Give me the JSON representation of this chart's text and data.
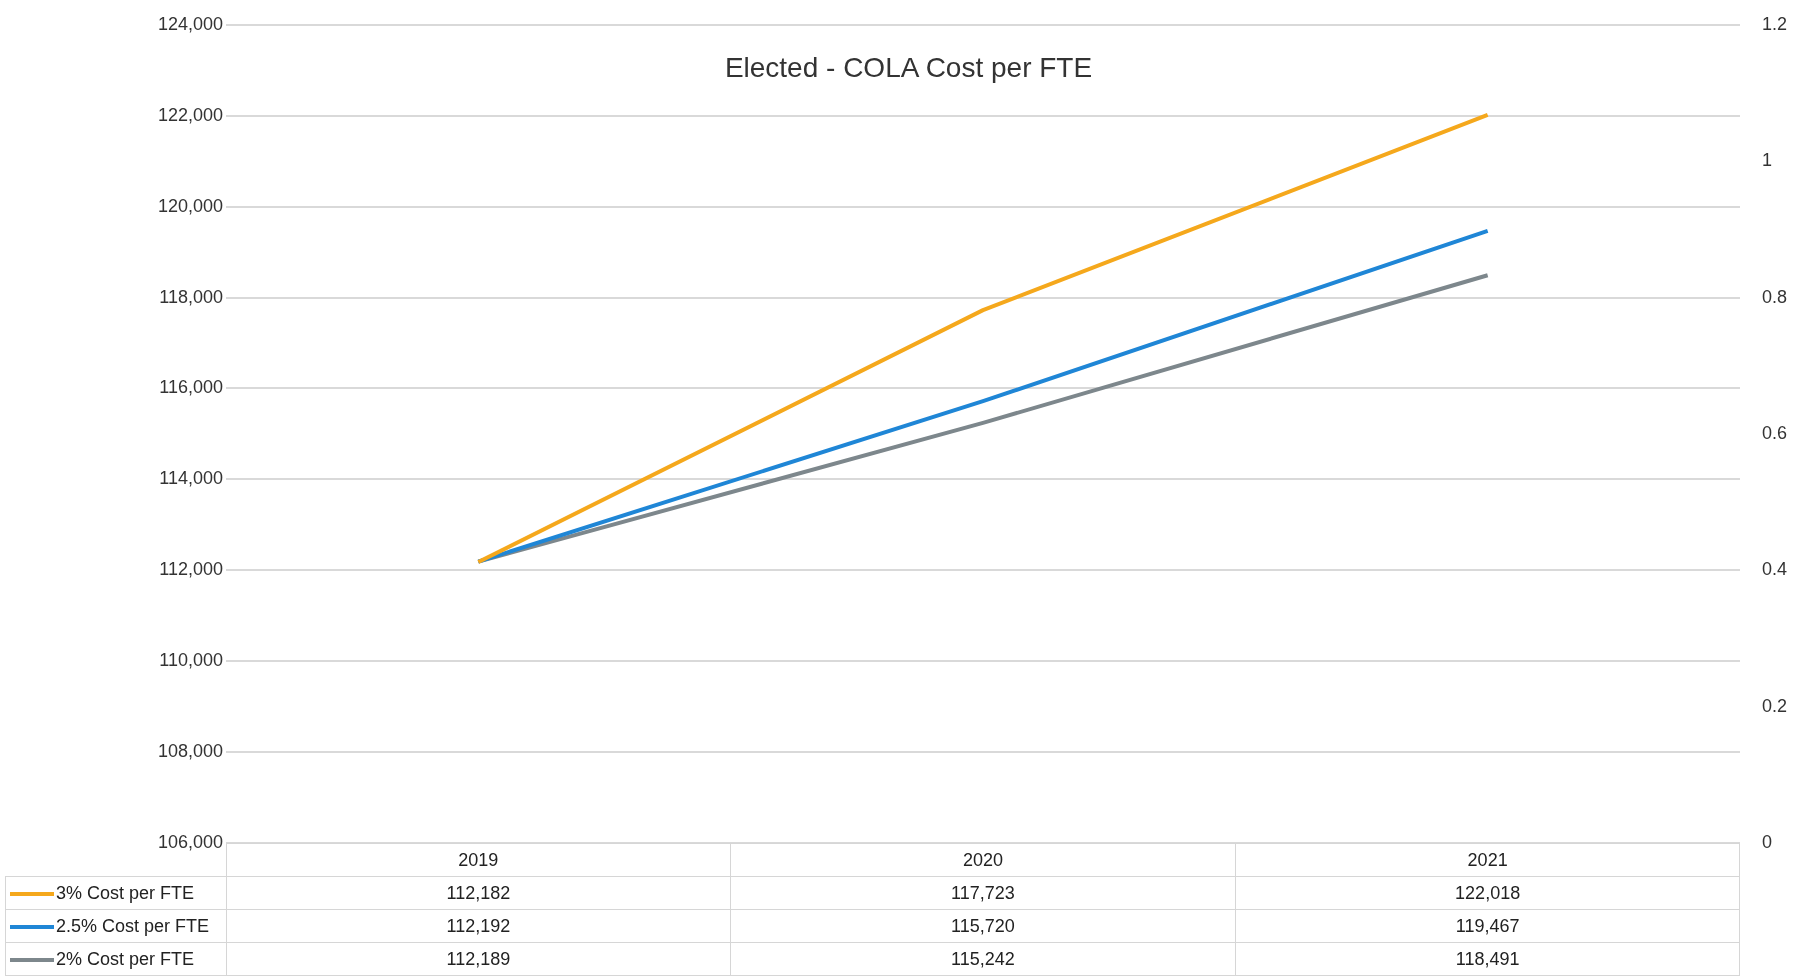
{
  "chart_data": {
    "type": "line",
    "title": "Elected - COLA Cost per FTE",
    "categories": [
      "2019",
      "2020",
      "2021"
    ],
    "series": [
      {
        "name": "3% Cost per FTE",
        "color": "#f5a81c",
        "values": [
          112182,
          117723,
          122018
        ],
        "value_labels": [
          "112,182",
          "117,723",
          "122,018"
        ]
      },
      {
        "name": "2.5% Cost per FTE",
        "color": "#1f86d6",
        "values": [
          112192,
          115720,
          119467
        ],
        "value_labels": [
          "112,192",
          "115,720",
          "119,467"
        ]
      },
      {
        "name": "2% Cost per FTE",
        "color": "#7d878c",
        "values": [
          112189,
          115242,
          118491
        ],
        "value_labels": [
          "112,189",
          "115,242",
          "118,491"
        ]
      }
    ],
    "ylim": [
      106000,
      124000
    ],
    "yticks": [
      {
        "value": 106000,
        "label": "106,000"
      },
      {
        "value": 108000,
        "label": "108,000"
      },
      {
        "value": 110000,
        "label": "110,000"
      },
      {
        "value": 112000,
        "label": "112,000"
      },
      {
        "value": 114000,
        "label": "114,000"
      },
      {
        "value": 116000,
        "label": "116,000"
      },
      {
        "value": 118000,
        "label": "118,000"
      },
      {
        "value": 120000,
        "label": "120,000"
      },
      {
        "value": 122000,
        "label": "122,000"
      },
      {
        "value": 124000,
        "label": "124,000"
      }
    ],
    "y2lim": [
      0,
      1.2
    ],
    "y2ticks": [
      0,
      0.2,
      0.4,
      0.6,
      0.8,
      1,
      1.2
    ],
    "grid": "y",
    "legend": "bottom",
    "line_style": "solid"
  }
}
